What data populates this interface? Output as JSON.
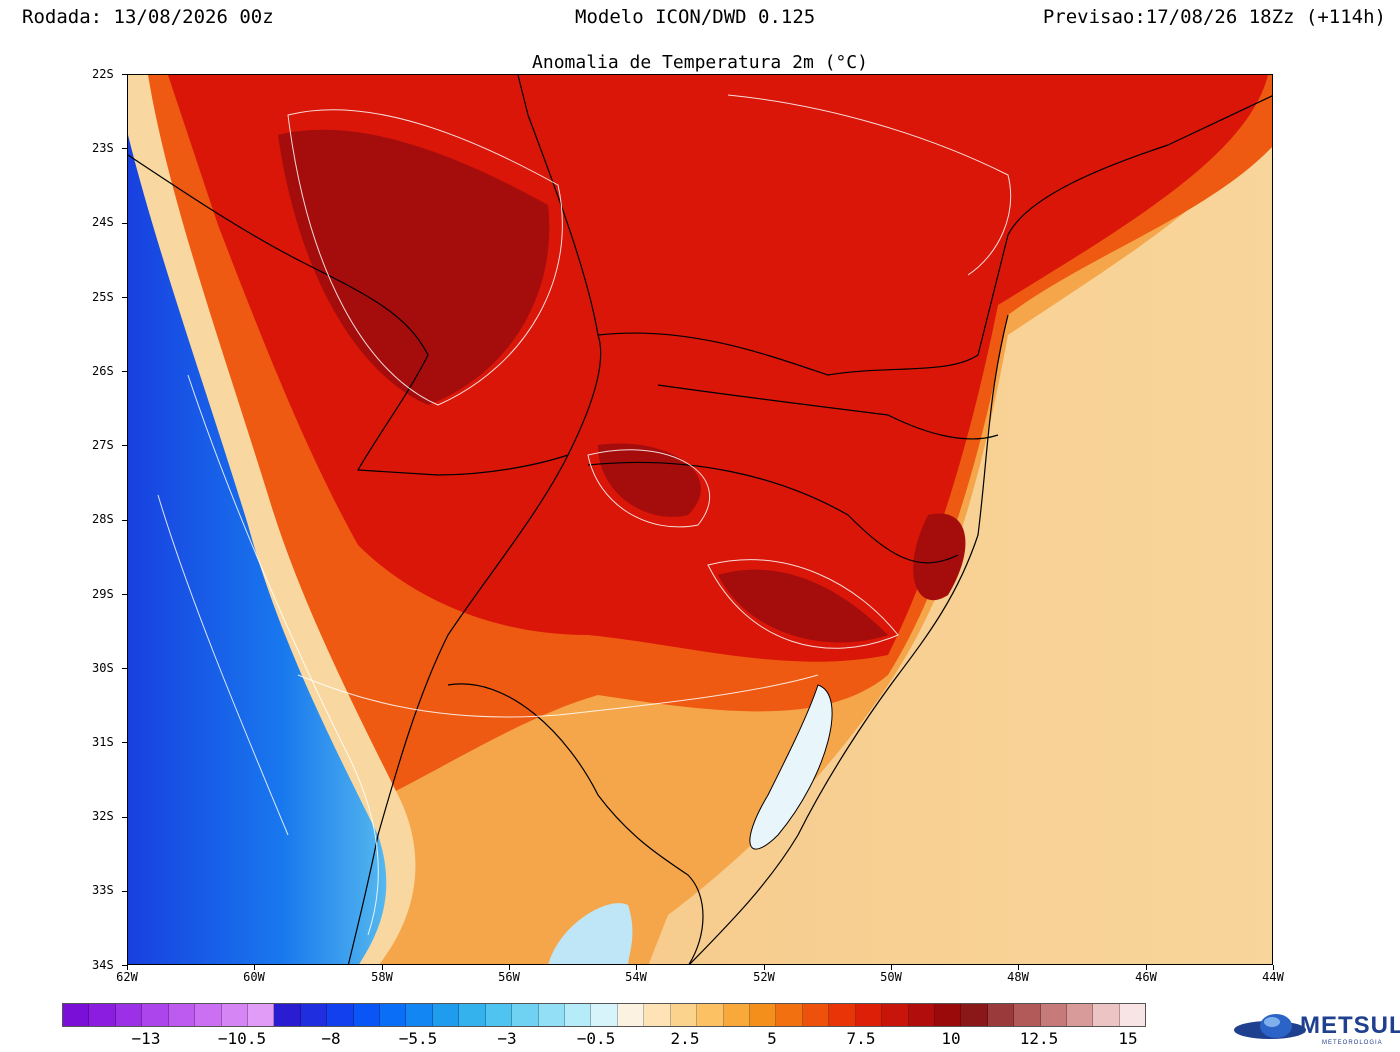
{
  "header": {
    "run": "Rodada: 13/08/2026 00z",
    "model": "Modelo ICON/DWD 0.125",
    "valid": "Previsao:17/08/26 18Zz (+114h)"
  },
  "title": "Anomalia de Temperatura 2m (°C)",
  "map": {
    "lat_labels": [
      "22S",
      "23S",
      "24S",
      "25S",
      "26S",
      "27S",
      "28S",
      "29S",
      "30S",
      "31S",
      "32S",
      "33S",
      "34S"
    ],
    "lon_labels": [
      "62W",
      "60W",
      "58W",
      "56W",
      "54W",
      "52W",
      "50W",
      "48W",
      "46W",
      "44W"
    ],
    "lat_range": [
      -34,
      -22
    ],
    "lon_range": [
      -62,
      -44
    ]
  },
  "colorbar": {
    "colors": [
      "#7a10d8",
      "#8b1de0",
      "#9c30e6",
      "#ad45ec",
      "#bd5bf0",
      "#cb70f2",
      "#d686f4",
      "#e09cf6",
      "#2a1cd0",
      "#1f2fe0",
      "#1240ee",
      "#0a55f5",
      "#0a6ef6",
      "#1286f2",
      "#1f9cee",
      "#33b2ee",
      "#4fc4f0",
      "#70d2f3",
      "#92dff6",
      "#b6ebf9",
      "#d8f4fb",
      "#fbf2e2",
      "#fde3b6",
      "#fcd38c",
      "#fbc163",
      "#f8a93a",
      "#f58f1b",
      "#f27010",
      "#ed510c",
      "#e93408",
      "#dd1f07",
      "#c8150b",
      "#b10d0d",
      "#9a0a0a",
      "#8a1818",
      "#9b3a3a",
      "#b25a5a",
      "#c67a7a",
      "#d99a9a",
      "#ecc4c4",
      "#f8e4e4"
    ],
    "labels": [
      "−13",
      "−10.5",
      "−8",
      "−5.5",
      "−3",
      "−0.5",
      "2.5",
      "5",
      "7.5",
      "10",
      "12.5",
      "15"
    ]
  },
  "logo": {
    "name": "METSUL",
    "sub": "METEOROLOGIA"
  }
}
